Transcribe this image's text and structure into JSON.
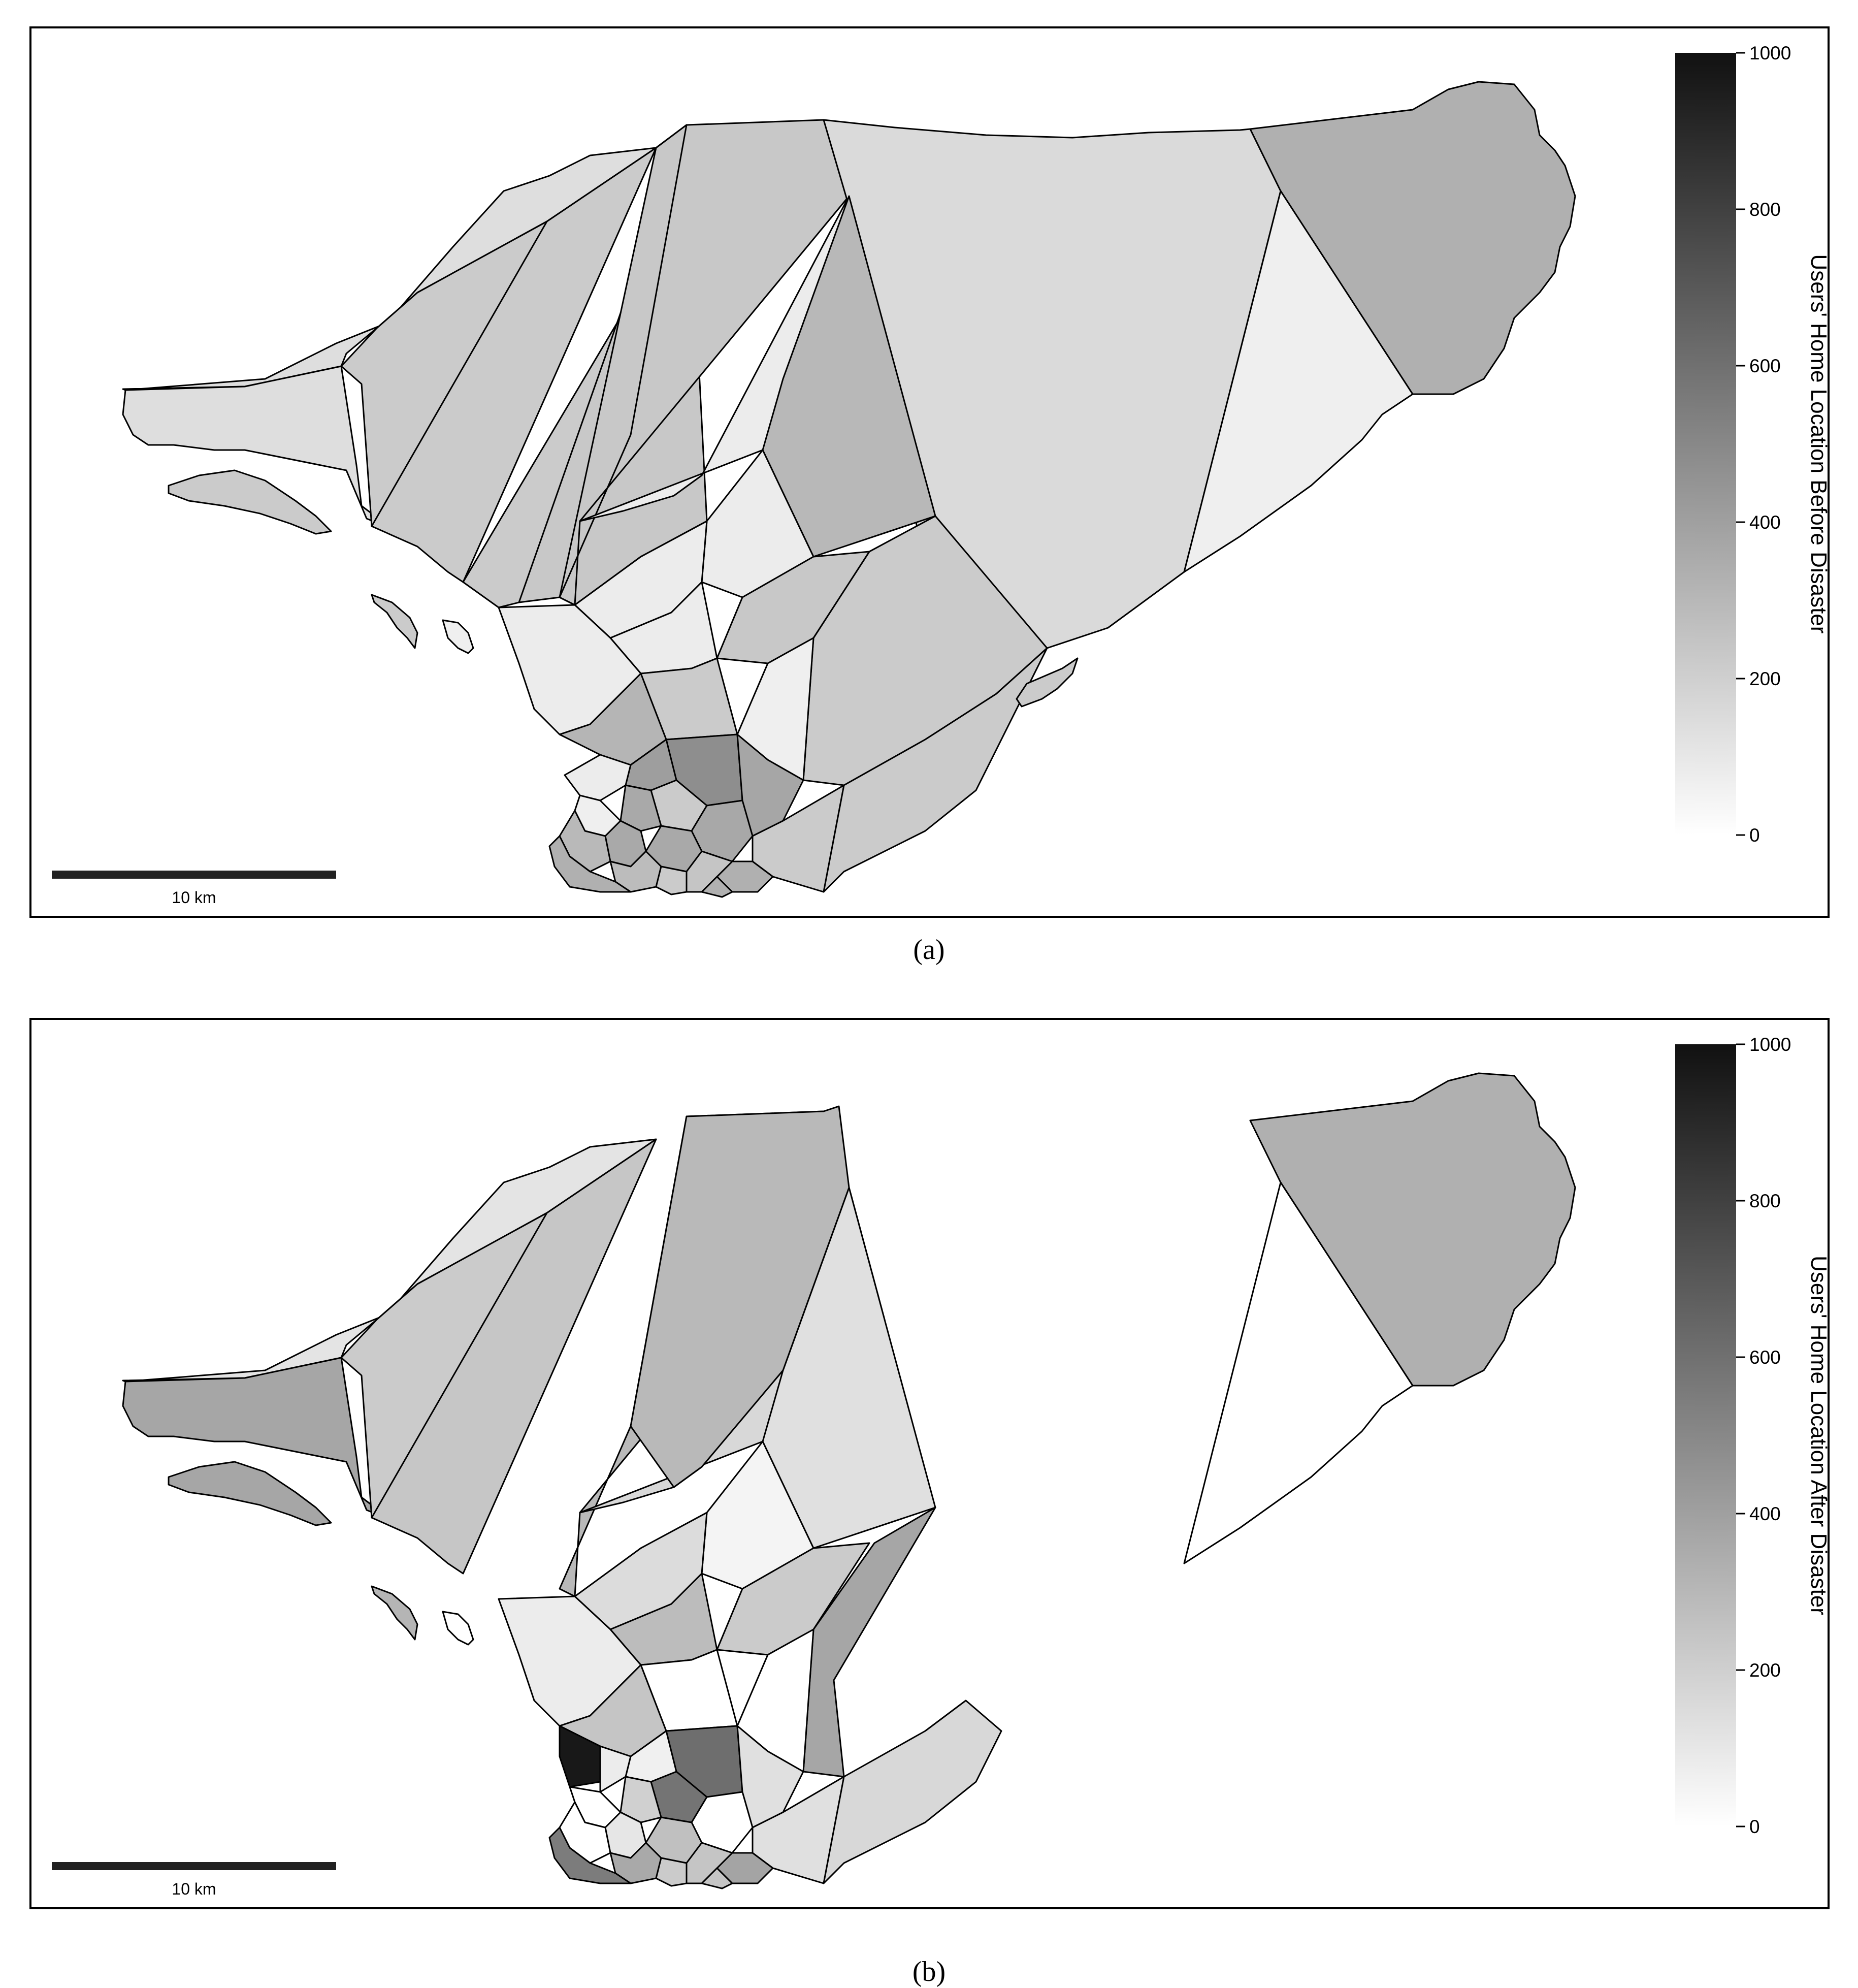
{
  "panels": [
    {
      "id": "a",
      "caption": "(a)",
      "colorbar": {
        "title": "Users' Home Location Before Disaster",
        "ticks": [
          "0",
          "200",
          "400",
          "600",
          "800",
          "1000"
        ],
        "min": 0,
        "max": 1000,
        "low_color": "#ffffff",
        "high_color": "#111111"
      },
      "scale_bar": {
        "label": "10 km"
      }
    },
    {
      "id": "b",
      "caption": "(b)",
      "colorbar": {
        "title": "Users' Home Location After Disaster",
        "ticks": [
          "0",
          "200",
          "400",
          "600",
          "800",
          "1000"
        ],
        "min": 0,
        "max": 1000,
        "low_color": "#ffffff",
        "high_color": "#111111"
      },
      "scale_bar": {
        "label": "10 km"
      }
    }
  ],
  "legend_colors": {
    "outline": "#000000",
    "background": "#ffffff"
  }
}
